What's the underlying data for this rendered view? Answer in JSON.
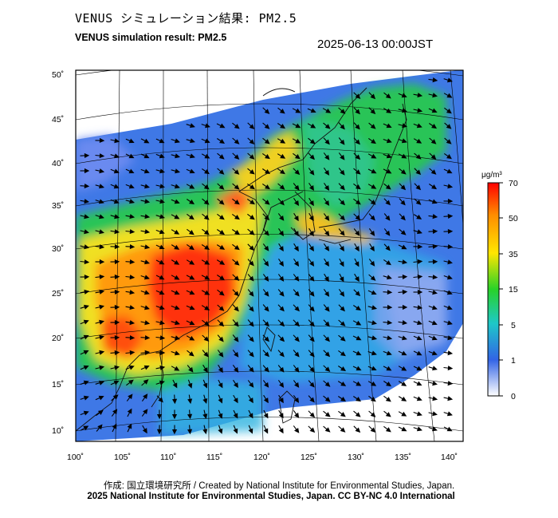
{
  "header": {
    "title_jp": "VENUS シミュレーション結果: PM2.5",
    "title_en": "VENUS simulation result: PM2.5",
    "timestamp": "2025-06-13 00:00JST"
  },
  "map": {
    "lon_labels": [
      "100˚",
      "105˚",
      "110˚",
      "115˚",
      "120˚",
      "125˚",
      "130˚",
      "135˚",
      "140˚"
    ],
    "lat_labels": [
      "50˚",
      "45˚",
      "40˚",
      "35˚",
      "30˚",
      "25˚",
      "20˚",
      "15˚",
      "10˚"
    ]
  },
  "colorbar": {
    "unit": "μg/m³",
    "tick_labels": [
      "70",
      "50",
      "35",
      "15",
      "5",
      "1",
      "0"
    ],
    "colors": [
      "#ff0000",
      "#ff8c00",
      "#ffe600",
      "#28d228",
      "#1ec8c8",
      "#3264e6",
      "#ffffff"
    ]
  },
  "footer": {
    "credit_1": "作成: 国立環境研究所 / Created by National Institute for Environmental Studies, Japan.",
    "credit_2": "2025 National Institute for Environmental Studies, Japan. CC BY-NC 4.0 International"
  }
}
